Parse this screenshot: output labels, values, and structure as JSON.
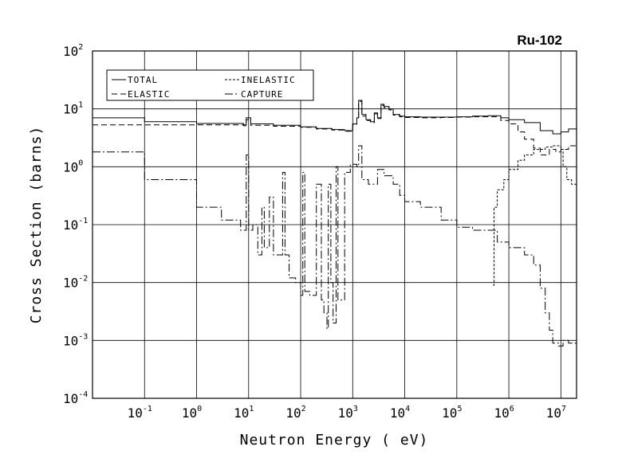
{
  "chart_data": {
    "type": "line",
    "title": "Ru-102",
    "xlabel": "Neutron Energy ( eV)",
    "ylabel": "Cross Section (barns)",
    "xscale": "log",
    "yscale": "log",
    "xlim": [
      0.01,
      20000000
    ],
    "ylim": [
      0.0001,
      100
    ],
    "grid": true,
    "legend_position": "top-left",
    "x_tick_labels": [
      {
        "base": "10",
        "exp": "-1",
        "value": 0.1
      },
      {
        "base": "10",
        "exp": "0",
        "value": 1
      },
      {
        "base": "10",
        "exp": "1",
        "value": 10
      },
      {
        "base": "10",
        "exp": "2",
        "value": 100
      },
      {
        "base": "10",
        "exp": "3",
        "value": 1000
      },
      {
        "base": "10",
        "exp": "4",
        "value": 10000
      },
      {
        "base": "10",
        "exp": "5",
        "value": 100000
      },
      {
        "base": "10",
        "exp": "6",
        "value": 1000000
      },
      {
        "base": "10",
        "exp": "7",
        "value": 10000000
      }
    ],
    "y_tick_labels": [
      {
        "base": "10",
        "exp": "2",
        "value": 100
      },
      {
        "base": "10",
        "exp": "1",
        "value": 10
      },
      {
        "base": "10",
        "exp": "0",
        "value": 1
      },
      {
        "base": "10",
        "exp": "-1",
        "value": 0.1
      },
      {
        "base": "10",
        "exp": "-2",
        "value": 0.01
      },
      {
        "base": "10",
        "exp": "-3",
        "value": 0.001
      },
      {
        "base": "10",
        "exp": "-4",
        "value": 0.0001
      }
    ],
    "series": [
      {
        "name": "TOTAL",
        "dash": "",
        "points": [
          [
            0.01,
            7.0
          ],
          [
            0.1,
            6.0
          ],
          [
            1,
            5.6
          ],
          [
            8,
            5.3
          ],
          [
            9,
            7.0
          ],
          [
            11,
            5.5
          ],
          [
            30,
            5.2
          ],
          [
            100,
            4.9
          ],
          [
            200,
            4.6
          ],
          [
            400,
            4.4
          ],
          [
            700,
            4.2
          ],
          [
            1000,
            5.5
          ],
          [
            1200,
            7.0
          ],
          [
            1300,
            14.0
          ],
          [
            1500,
            8.0
          ],
          [
            1800,
            6.5
          ],
          [
            2200,
            6.0
          ],
          [
            2600,
            8.5
          ],
          [
            3000,
            7.0
          ],
          [
            3500,
            12.0
          ],
          [
            4000,
            11.0
          ],
          [
            5000,
            10.0
          ],
          [
            6000,
            8.0
          ],
          [
            8000,
            7.5
          ],
          [
            10000,
            7.3
          ],
          [
            20000,
            7.2
          ],
          [
            50000,
            7.2
          ],
          [
            100000,
            7.3
          ],
          [
            200000,
            7.5
          ],
          [
            400000,
            7.6
          ],
          [
            700000,
            7.0
          ],
          [
            1000000,
            6.5
          ],
          [
            2000000,
            5.8
          ],
          [
            4000000,
            4.2
          ],
          [
            7000000,
            3.7
          ],
          [
            10000000,
            4.0
          ],
          [
            14000000,
            4.5
          ],
          [
            20000000,
            4.2
          ]
        ]
      },
      {
        "name": "ELASTIC",
        "dash": "7,4",
        "points": [
          [
            0.01,
            5.3
          ],
          [
            0.1,
            5.3
          ],
          [
            1,
            5.3
          ],
          [
            8,
            5.1
          ],
          [
            9,
            6.5
          ],
          [
            11,
            5.2
          ],
          [
            30,
            5.0
          ],
          [
            100,
            4.8
          ],
          [
            200,
            4.5
          ],
          [
            400,
            4.3
          ],
          [
            700,
            4.1
          ],
          [
            1000,
            5.3
          ],
          [
            1200,
            6.8
          ],
          [
            1300,
            13.5
          ],
          [
            1500,
            7.5
          ],
          [
            1800,
            6.3
          ],
          [
            2200,
            5.8
          ],
          [
            2600,
            8.2
          ],
          [
            3000,
            6.8
          ],
          [
            3500,
            11.5
          ],
          [
            4000,
            10.5
          ],
          [
            5000,
            9.6
          ],
          [
            6000,
            7.8
          ],
          [
            8000,
            7.3
          ],
          [
            10000,
            7.1
          ],
          [
            20000,
            7.0
          ],
          [
            50000,
            7.1
          ],
          [
            100000,
            7.2
          ],
          [
            200000,
            7.3
          ],
          [
            400000,
            7.3
          ],
          [
            700000,
            6.3
          ],
          [
            1000000,
            5.5
          ],
          [
            1500000,
            4.0
          ],
          [
            2000000,
            3.0
          ],
          [
            3000000,
            2.1
          ],
          [
            4000000,
            1.6
          ],
          [
            6000000,
            2.0
          ],
          [
            8000000,
            1.8
          ],
          [
            10000000,
            2.0
          ],
          [
            14000000,
            2.3
          ],
          [
            20000000,
            2.1
          ]
        ]
      },
      {
        "name": "INELASTIC",
        "dash": "3,2",
        "points": [
          [
            500000,
            0.009
          ],
          [
            520000,
            0.2
          ],
          [
            600000,
            0.4
          ],
          [
            800000,
            0.6
          ],
          [
            1000000,
            0.9
          ],
          [
            1500000,
            1.3
          ],
          [
            2000000,
            1.6
          ],
          [
            3000000,
            2.0
          ],
          [
            5000000,
            2.2
          ],
          [
            7000000,
            2.3
          ],
          [
            10000000,
            2.0
          ],
          [
            11000000,
            1.0
          ],
          [
            13000000,
            0.6
          ],
          [
            16000000,
            0.5
          ],
          [
            20000000,
            0.4
          ]
        ]
      },
      {
        "name": "CAPTURE",
        "dash": "10,3,2,3",
        "points": [
          [
            0.01,
            1.8
          ],
          [
            0.1,
            0.6
          ],
          [
            1,
            0.2
          ],
          [
            3,
            0.12
          ],
          [
            7,
            0.08
          ],
          [
            9,
            1.6
          ],
          [
            10,
            0.08
          ],
          [
            12,
            0.1
          ],
          [
            15,
            0.03
          ],
          [
            18,
            0.2
          ],
          [
            20,
            0.04
          ],
          [
            25,
            0.3
          ],
          [
            30,
            0.03
          ],
          [
            45,
            0.8
          ],
          [
            50,
            0.03
          ],
          [
            60,
            0.012
          ],
          [
            80,
            0.01
          ],
          [
            100,
            0.006
          ],
          [
            110,
            0.8
          ],
          [
            120,
            0.007
          ],
          [
            150,
            0.006
          ],
          [
            200,
            0.5
          ],
          [
            250,
            0.005
          ],
          [
            280,
            0.003
          ],
          [
            320,
            0.0016
          ],
          [
            340,
            0.5
          ],
          [
            380,
            0.01
          ],
          [
            420,
            0.002
          ],
          [
            480,
            1.0
          ],
          [
            520,
            0.005
          ],
          [
            600,
            0.005
          ],
          [
            700,
            0.8
          ],
          [
            900,
            1.1
          ],
          [
            1200,
            1.0
          ],
          [
            1300,
            2.3
          ],
          [
            1500,
            0.6
          ],
          [
            2000,
            0.5
          ],
          [
            3000,
            0.9
          ],
          [
            4000,
            0.7
          ],
          [
            6000,
            0.5
          ],
          [
            8000,
            0.32
          ],
          [
            10000,
            0.25
          ],
          [
            20000,
            0.2
          ],
          [
            50000,
            0.12
          ],
          [
            100000,
            0.09
          ],
          [
            200000,
            0.08
          ],
          [
            400000,
            0.08
          ],
          [
            600000,
            0.05
          ],
          [
            1000000,
            0.04
          ],
          [
            2000000,
            0.03
          ],
          [
            3000000,
            0.02
          ],
          [
            4000000,
            0.008
          ],
          [
            5000000,
            0.003
          ],
          [
            6000000,
            0.0015
          ],
          [
            7000000,
            0.0009
          ],
          [
            9000000,
            0.0008
          ],
          [
            11000000,
            0.001
          ],
          [
            14000000,
            0.0009
          ],
          [
            20000000,
            0.00085
          ]
        ]
      }
    ]
  }
}
